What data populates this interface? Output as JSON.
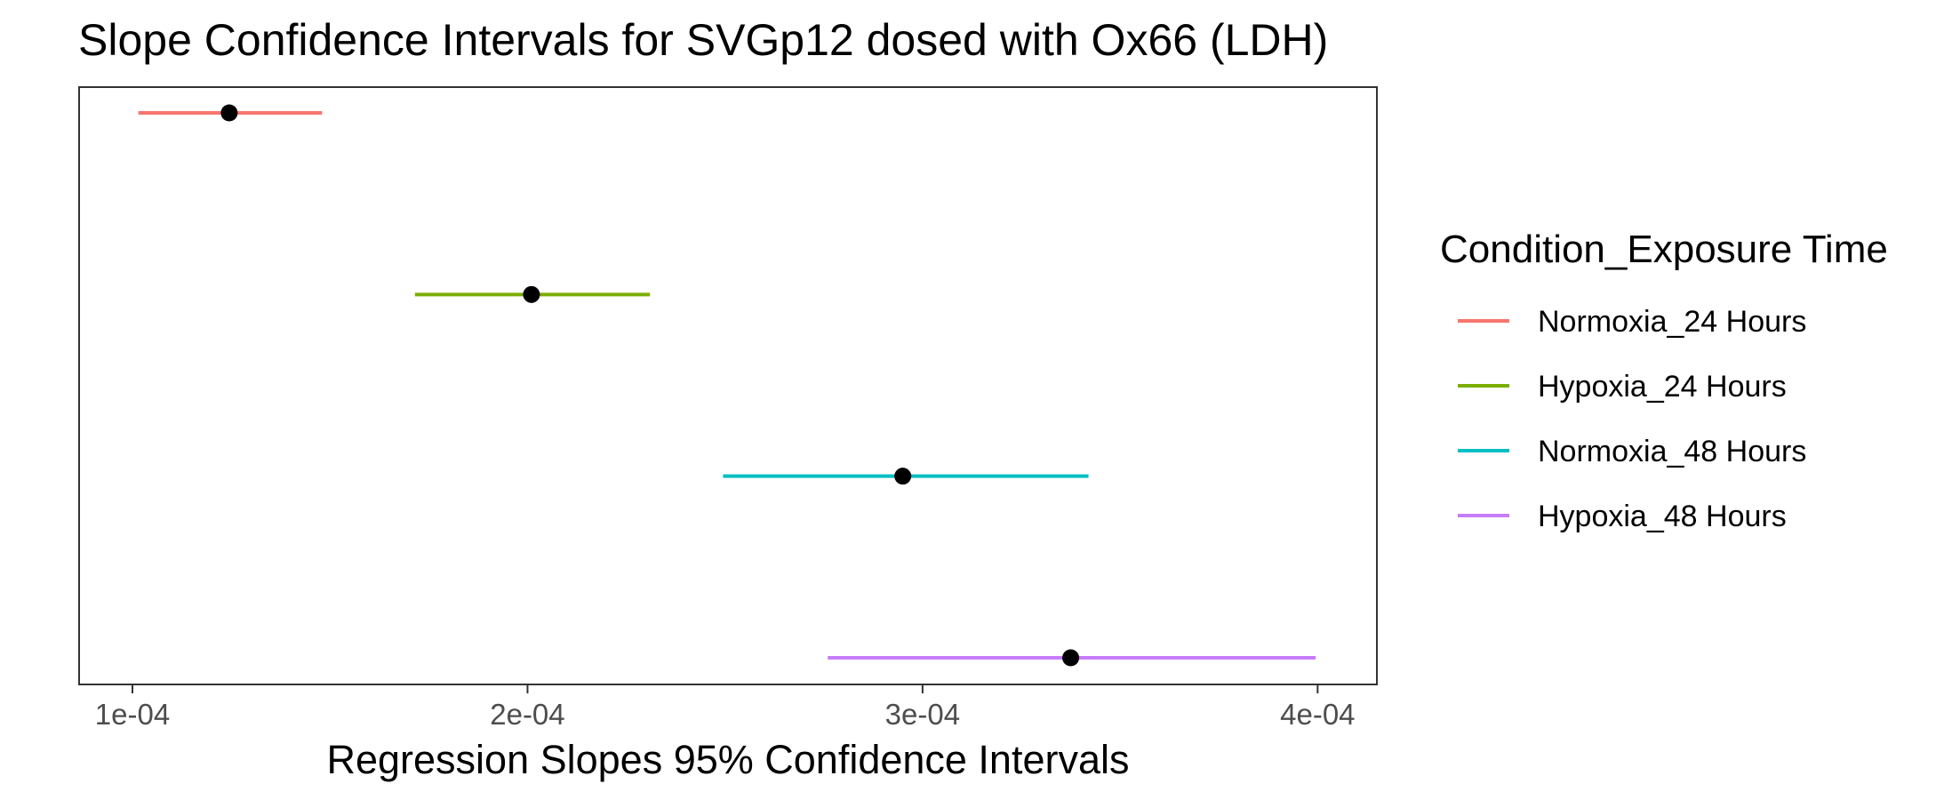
{
  "chart_data": {
    "type": "errorbar",
    "title": "Slope Confidence Intervals for SVGp12 dosed with Ox66 (LDH)",
    "xlabel": "Regression Slopes 95% Confidence Intervals",
    "ylabel": "",
    "xlim": [
      8.65e-05,
      0.000415
    ],
    "x_ticks": [
      {
        "value": 0.0001,
        "label": "1e-04"
      },
      {
        "value": 0.0002,
        "label": "2e-04"
      },
      {
        "value": 0.0003,
        "label": "3e-04"
      },
      {
        "value": 0.0004,
        "label": "4e-04"
      }
    ],
    "grid": false,
    "legend": {
      "title": "Condition_Exposure Time",
      "position": "right"
    },
    "point_color": "#000000",
    "series": [
      {
        "name": "Normoxia_24 Hours",
        "color": "#F8766D",
        "estimate": 0.0001245,
        "lower": 0.0001015,
        "upper": 0.000148
      },
      {
        "name": "Hypoxia_24 Hours",
        "color": "#7CAE00",
        "estimate": 0.000201,
        "lower": 0.0001715,
        "upper": 0.000231
      },
      {
        "name": "Normoxia_48 Hours",
        "color": "#00BFC4",
        "estimate": 0.000295,
        "lower": 0.0002495,
        "upper": 0.000342
      },
      {
        "name": "Hypoxia_48 Hours",
        "color": "#C77CFF",
        "estimate": 0.0003375,
        "lower": 0.000276,
        "upper": 0.0003995
      }
    ]
  }
}
